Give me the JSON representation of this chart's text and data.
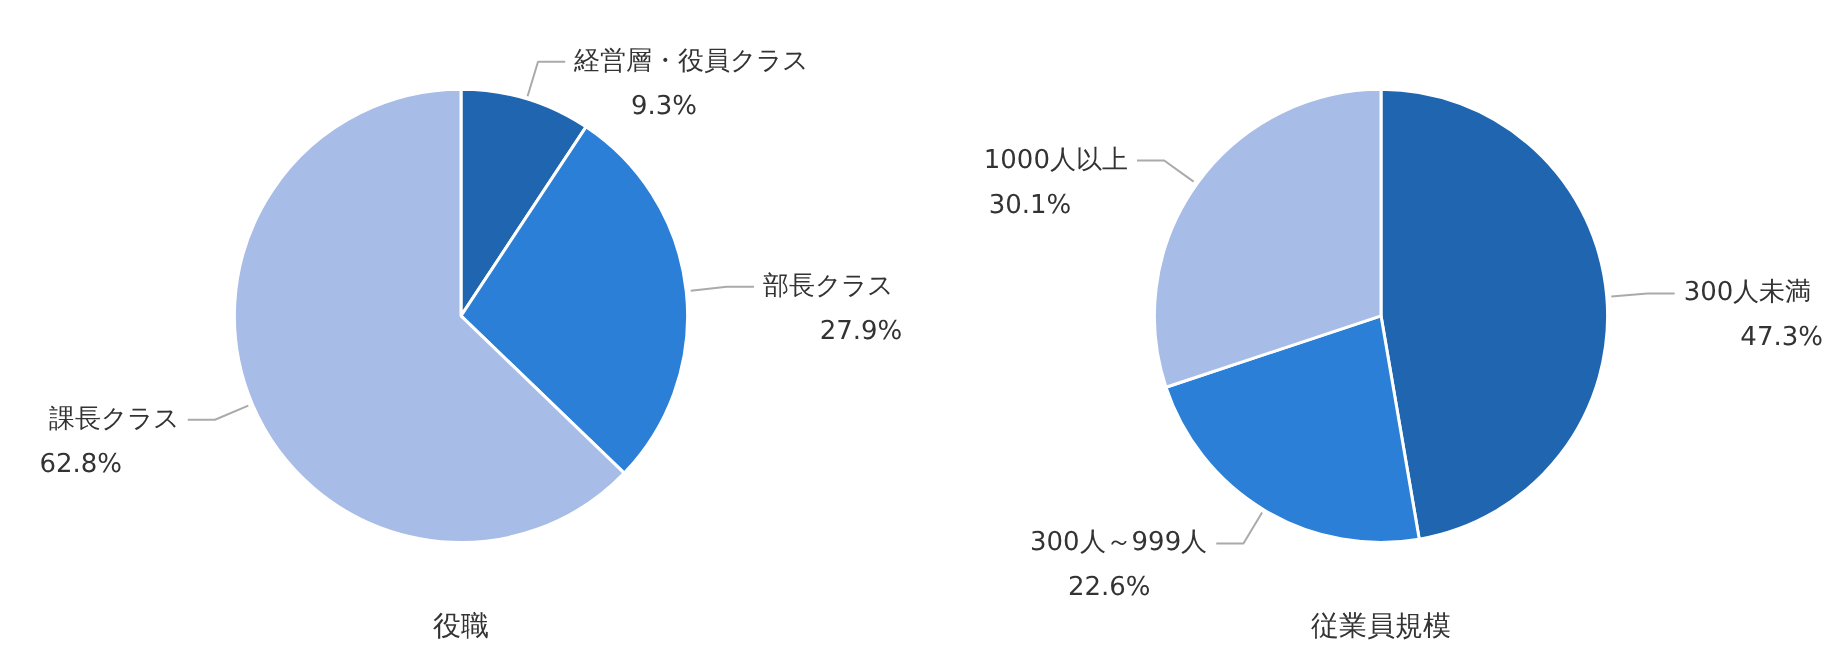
{
  "chart_data": [
    {
      "type": "pie",
      "title": "役職",
      "categories": [
        "経営層・役員クラス",
        "部長クラス",
        "課長クラス"
      ],
      "values": [
        9.3,
        27.9,
        62.8
      ],
      "value_labels": [
        "9.3%",
        "27.9%",
        "62.8%"
      ],
      "colors": [
        "#1f65b0",
        "#2b7fd6",
        "#a7bce6"
      ]
    },
    {
      "type": "pie",
      "title": "従業員規模",
      "categories": [
        "300人未満",
        "300人～999人",
        "1000人以上"
      ],
      "values": [
        47.3,
        22.6,
        30.1
      ],
      "value_labels": [
        "47.3%",
        "22.6%",
        "30.1%"
      ],
      "colors": [
        "#1f65b0",
        "#2b7fd6",
        "#a7bce6"
      ]
    }
  ]
}
